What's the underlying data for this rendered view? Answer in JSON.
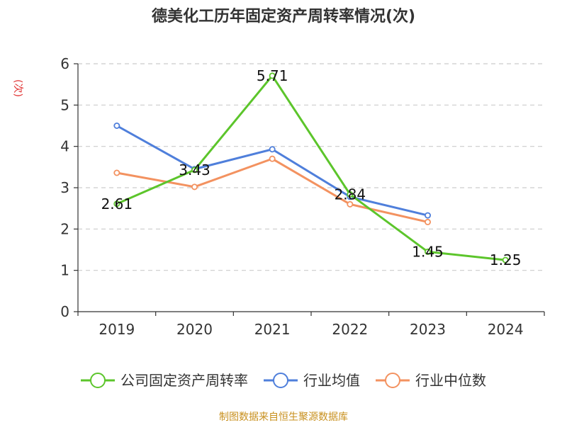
{
  "chart_data": {
    "type": "line",
    "title": "德美化工历年固定资产周转率情况(次)",
    "ylabel": "(次)",
    "xlabel": "",
    "categories": [
      "2019",
      "2020",
      "2021",
      "2022",
      "2023",
      "2024"
    ],
    "ylim": [
      0,
      6
    ],
    "yticks": [
      0,
      1,
      2,
      3,
      4,
      5,
      6
    ],
    "grid": true,
    "legend_position": "bottom",
    "series": [
      {
        "name": "公司固定资产周转率",
        "color": "#5cc52b",
        "values": [
          2.61,
          3.43,
          5.71,
          2.84,
          1.45,
          1.25
        ],
        "labels": [
          "2.61",
          "3.43",
          "5.71",
          "2.84",
          "1.45",
          "1.25"
        ]
      },
      {
        "name": "行业均值",
        "color": "#4f7fdb",
        "values": [
          4.5,
          3.45,
          3.93,
          2.78,
          2.33,
          null
        ]
      },
      {
        "name": "行业中位数",
        "color": "#f39260",
        "values": [
          3.36,
          3.02,
          3.7,
          2.6,
          2.17,
          null
        ]
      }
    ]
  },
  "source": "制图数据来自恒生聚源数据库"
}
